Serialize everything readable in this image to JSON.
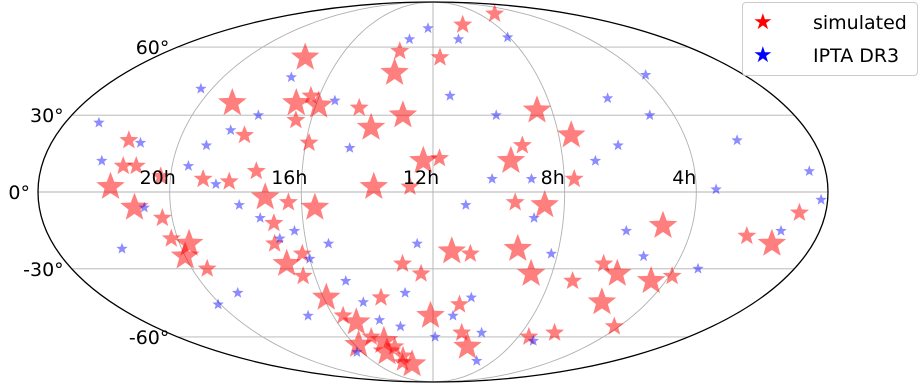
{
  "chart_data": {
    "type": "scatter",
    "projection": "mollweide",
    "grid": true,
    "legend_placement": "top-right",
    "legend": [
      {
        "label": "simulated",
        "color": "#ff0000"
      },
      {
        "label": "IPTA DR3",
        "color": "#0000ff"
      }
    ],
    "x_tick_labels": [
      {
        "label": "20h",
        "ra_h": 20
      },
      {
        "label": "16h",
        "ra_h": 16
      },
      {
        "label": "12h",
        "ra_h": 12
      },
      {
        "label": "8h",
        "ra_h": 8
      },
      {
        "label": "4h",
        "ra_h": 4
      }
    ],
    "y_tick_labels": [
      {
        "label": "60°",
        "dec": 60
      },
      {
        "label": "30°",
        "dec": 30
      },
      {
        "label": "0°",
        "dec": 0
      },
      {
        "label": "-30°",
        "dec": -30
      },
      {
        "label": "-60°",
        "dec": -60
      }
    ],
    "series": [
      {
        "name": "simulated",
        "color": "#ff0000",
        "note_size": "marker size scales with point",
        "points": [
          {
            "ra": 21.6,
            "dec": 20,
            "s": 2
          },
          {
            "ra": 21.1,
            "dec": 10,
            "s": 2
          },
          {
            "ra": 21.8,
            "dec": 2,
            "s": 3
          },
          {
            "ra": 21.5,
            "dec": 10,
            "s": 2
          },
          {
            "ra": 20.3,
            "dec": 6,
            "s": 2
          },
          {
            "ra": 21.1,
            "dec": -6,
            "s": 3
          },
          {
            "ra": 20.3,
            "dec": -10,
            "s": 2
          },
          {
            "ra": 20.2,
            "dec": -18,
            "s": 2
          },
          {
            "ra": 20.0,
            "dec": -25,
            "s": 3
          },
          {
            "ra": 19.7,
            "dec": -20,
            "s": 3
          },
          {
            "ra": 19.5,
            "dec": -30,
            "s": 2
          },
          {
            "ra": 18.9,
            "dec": 35,
            "s": 3
          },
          {
            "ra": 17.5,
            "dec": 55,
            "s": 3
          },
          {
            "ra": 18.0,
            "dec": 22,
            "s": 2
          },
          {
            "ra": 19.0,
            "dec": 5,
            "s": 2
          },
          {
            "ra": 18.2,
            "dec": 4,
            "s": 2
          },
          {
            "ra": 17.4,
            "dec": 8,
            "s": 2
          },
          {
            "ra": 16.7,
            "dec": 35,
            "s": 3
          },
          {
            "ra": 16.3,
            "dec": 38,
            "s": 2
          },
          {
            "ra": 15.9,
            "dec": 34,
            "s": 3
          },
          {
            "ra": 16.5,
            "dec": 28,
            "s": 2
          },
          {
            "ra": 15.9,
            "dec": 19,
            "s": 2
          },
          {
            "ra": 17.1,
            "dec": -2,
            "s": 3
          },
          {
            "ra": 16.4,
            "dec": -4,
            "s": 2
          },
          {
            "ra": 15.6,
            "dec": -6,
            "s": 3
          },
          {
            "ra": 16.9,
            "dec": -12,
            "s": 2
          },
          {
            "ra": 17.0,
            "dec": -20,
            "s": 2
          },
          {
            "ra": 16.8,
            "dec": -28,
            "s": 3
          },
          {
            "ra": 16.2,
            "dec": -24,
            "s": 2
          },
          {
            "ra": 16.4,
            "dec": -33,
            "s": 2
          },
          {
            "ra": 15.9,
            "dec": -42,
            "s": 3
          },
          {
            "ra": 15.6,
            "dec": -50,
            "s": 2
          },
          {
            "ra": 15.2,
            "dec": -53,
            "s": 3
          },
          {
            "ra": 14.9,
            "dec": -60,
            "s": 2
          },
          {
            "ra": 14.4,
            "dec": -62,
            "s": 3
          },
          {
            "ra": 13.8,
            "dec": -70,
            "s": 2
          },
          {
            "ra": 13.5,
            "dec": -75,
            "s": 3
          },
          {
            "ra": 14.0,
            "dec": -65,
            "s": 2
          },
          {
            "ra": 13.9,
            "dec": -42,
            "s": 2
          },
          {
            "ra": 14.5,
            "dec": 33,
            "s": 2
          },
          {
            "ra": 14.0,
            "dec": 25,
            "s": 3
          },
          {
            "ra": 13.5,
            "dec": 48,
            "s": 3
          },
          {
            "ra": 13.5,
            "dec": 58,
            "s": 2
          },
          {
            "ra": 13.0,
            "dec": 30,
            "s": 3
          },
          {
            "ra": 13.8,
            "dec": 2,
            "s": 3
          },
          {
            "ra": 12.3,
            "dec": 12,
            "s": 3
          },
          {
            "ra": 11.8,
            "dec": 13,
            "s": 2
          },
          {
            "ra": 12.7,
            "dec": 2,
            "s": 2
          },
          {
            "ra": 13.0,
            "dec": -28,
            "s": 2
          },
          {
            "ra": 12.4,
            "dec": -32,
            "s": 2
          },
          {
            "ra": 12.1,
            "dec": -50,
            "s": 3
          },
          {
            "ra": 11.4,
            "dec": -23,
            "s": 3
          },
          {
            "ra": 10.8,
            "dec": -24,
            "s": 2
          },
          {
            "ra": 11.0,
            "dec": -45,
            "s": 2
          },
          {
            "ra": 10.7,
            "dec": -58,
            "s": 2
          },
          {
            "ra": 10.2,
            "dec": -65,
            "s": 3
          },
          {
            "ra": 11.7,
            "dec": 55,
            "s": 2
          },
          {
            "ra": 9.6,
            "dec": 12,
            "s": 3
          },
          {
            "ra": 9.2,
            "dec": 18,
            "s": 2
          },
          {
            "ra": 8.5,
            "dec": 32,
            "s": 3
          },
          {
            "ra": 7.6,
            "dec": 22,
            "s": 3
          },
          {
            "ra": 7.7,
            "dec": 5,
            "s": 2
          },
          {
            "ra": 8.6,
            "dec": -5,
            "s": 3
          },
          {
            "ra": 9.5,
            "dec": -4,
            "s": 2
          },
          {
            "ra": 9.3,
            "dec": -22,
            "s": 3
          },
          {
            "ra": 8.7,
            "dec": -32,
            "s": 3
          },
          {
            "ra": 7.2,
            "dec": -35,
            "s": 2
          },
          {
            "ra": 5.7,
            "dec": -44,
            "s": 3
          },
          {
            "ra": 6.5,
            "dec": -58,
            "s": 2
          },
          {
            "ra": 6.4,
            "dec": -28,
            "s": 2
          },
          {
            "ra": 5.8,
            "dec": -32,
            "s": 3
          },
          {
            "ra": 4.5,
            "dec": -35,
            "s": 3
          },
          {
            "ra": 4.9,
            "dec": -13,
            "s": 3
          },
          {
            "ra": 3.9,
            "dec": -33,
            "s": 2
          },
          {
            "ra": 2.2,
            "dec": -17,
            "s": 2
          },
          {
            "ra": 1.3,
            "dec": -20,
            "s": 3
          },
          {
            "ra": 0.8,
            "dec": -8,
            "s": 2
          },
          {
            "ra": 4.2,
            "dec": -55,
            "s": 2
          },
          {
            "ra": 7.5,
            "dec": -60,
            "s": 2
          },
          {
            "ra": 10.1,
            "dec": 72,
            "s": 2
          },
          {
            "ra": 6.6,
            "dec": 79,
            "s": 2
          },
          {
            "ra": 15.8,
            "dec": -64,
            "s": 3
          },
          {
            "ra": 14.6,
            "dec": -68,
            "s": 3
          },
          {
            "ra": 14.1,
            "dec": -74,
            "s": 2
          }
        ]
      },
      {
        "name": "IPTA DR3",
        "color": "#0000ff",
        "points": [
          {
            "ra": 20.4,
            "dec": 41
          },
          {
            "ra": 21.2,
            "dec": 19
          },
          {
            "ra": 19.1,
            "dec": 18
          },
          {
            "ra": 18.5,
            "dec": 24
          },
          {
            "ra": 22.2,
            "dec": 12
          },
          {
            "ra": 21.9,
            "dec": -22
          },
          {
            "ra": 20.8,
            "dec": -6
          },
          {
            "ra": 19.5,
            "dec": 10
          },
          {
            "ra": 18.6,
            "dec": 3
          },
          {
            "ra": 17.9,
            "dec": -5
          },
          {
            "ra": 17.3,
            "dec": -10
          },
          {
            "ra": 16.8,
            "dec": -18
          },
          {
            "ra": 16.3,
            "dec": -15
          },
          {
            "ra": 16.0,
            "dec": -26
          },
          {
            "ra": 15.3,
            "dec": -20
          },
          {
            "ra": 15.0,
            "dec": -35
          },
          {
            "ra": 14.6,
            "dec": -44
          },
          {
            "ra": 14.2,
            "dec": -52
          },
          {
            "ra": 13.4,
            "dec": -55
          },
          {
            "ra": 13.0,
            "dec": -40
          },
          {
            "ra": 12.5,
            "dec": -20
          },
          {
            "ra": 11.9,
            "dec": -60
          },
          {
            "ra": 11.2,
            "dec": -50
          },
          {
            "ra": 10.6,
            "dec": -42
          },
          {
            "ra": 13.2,
            "dec": 64
          },
          {
            "ra": 12.3,
            "dec": 70
          },
          {
            "ra": 10.7,
            "dec": 64
          },
          {
            "ra": 11.4,
            "dec": 38
          },
          {
            "ra": 9.9,
            "dec": 30
          },
          {
            "ra": 9.0,
            "dec": 5
          },
          {
            "ra": 8.9,
            "dec": -10
          },
          {
            "ra": 8.2,
            "dec": -24
          },
          {
            "ra": 7.0,
            "dec": 12
          },
          {
            "ra": 6.2,
            "dec": 18
          },
          {
            "ra": 5.9,
            "dec": 37
          },
          {
            "ra": 4.8,
            "dec": 30
          },
          {
            "ra": 3.8,
            "dec": 47
          },
          {
            "ra": 2.4,
            "dec": 20
          },
          {
            "ra": 0.5,
            "dec": 8
          },
          {
            "ra": 0.2,
            "dec": -3
          },
          {
            "ra": 1.2,
            "dec": -15
          },
          {
            "ra": 3.2,
            "dec": -30
          },
          {
            "ra": 5.2,
            "dec": -25
          },
          {
            "ra": 6.0,
            "dec": -15
          },
          {
            "ra": 7.1,
            "dec": -62
          },
          {
            "ra": 9.1,
            "dec": -73
          },
          {
            "ra": 17.8,
            "dec": 30
          },
          {
            "ra": 17.4,
            "dec": 46
          },
          {
            "ra": 15.4,
            "dec": 36
          },
          {
            "ra": 14.6,
            "dec": 17
          },
          {
            "ra": 22.9,
            "dec": 27
          },
          {
            "ra": 20.1,
            "dec": -45
          },
          {
            "ra": 19.0,
            "dec": -40
          },
          {
            "ra": 17.0,
            "dec": -50
          },
          {
            "ra": 16.3,
            "dec": -68
          },
          {
            "ra": 11.0,
            "dec": -5
          },
          {
            "ra": 10.2,
            "dec": 5
          },
          {
            "ra": 9.8,
            "dec": -58
          },
          {
            "ra": 8.1,
            "dec": 65
          },
          {
            "ra": 3.4,
            "dec": 1
          }
        ]
      }
    ]
  }
}
